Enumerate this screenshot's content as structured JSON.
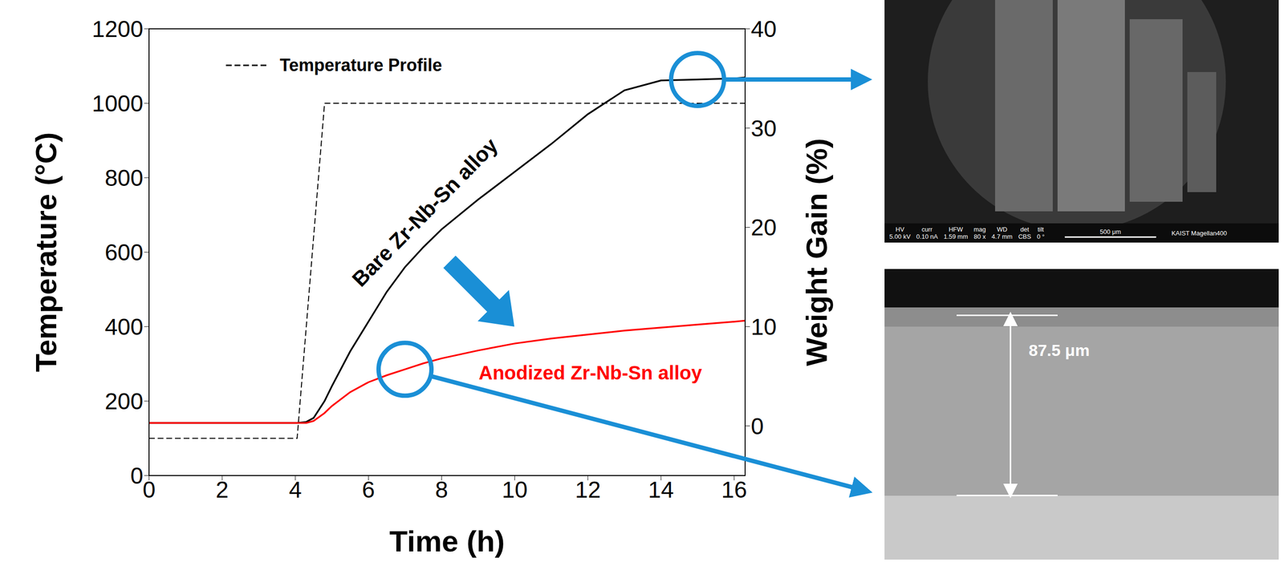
{
  "chart_data": {
    "type": "line",
    "x": [
      0,
      1,
      2,
      3,
      4,
      4.05,
      4.3,
      4.5,
      4.8,
      5,
      5.5,
      6,
      6.5,
      7,
      7.5,
      8,
      9,
      10,
      11,
      12,
      13,
      14,
      15,
      16,
      16.3
    ],
    "xlim": [
      0,
      16.3
    ],
    "xticks": [
      0,
      2,
      4,
      6,
      8,
      10,
      12,
      14,
      16
    ],
    "ylim": [
      0,
      1200
    ],
    "yticks": [
      0,
      200,
      400,
      600,
      800,
      1000,
      1200
    ],
    "y2lim": [
      -5,
      40
    ],
    "y2ticks": [
      0,
      10,
      20,
      30,
      40
    ],
    "x_label": "Time (h)",
    "y_label": "Temperature (°C)",
    "y2_label": "Weight Gain (%)",
    "legend": "upper left",
    "grid": false,
    "series": [
      {
        "name": "Temperature Profile",
        "color": "#000000",
        "line_style": "dashed",
        "values": [
          100,
          100,
          100,
          100,
          100,
          100,
          400,
          640,
          1000,
          1000,
          1000,
          1000,
          1000,
          1000,
          1000,
          1000,
          1000,
          1000,
          1000,
          1000,
          1000,
          1000,
          1000,
          1000,
          1000
        ]
      },
      {
        "name": "Bare Zr-Nb-Sn alloy",
        "color": "#000000",
        "axis": "y2",
        "line_style": "solid",
        "values": [
          0.3,
          0.3,
          0.3,
          0.3,
          0.3,
          0.3,
          0.4,
          0.8,
          2.5,
          4.0,
          7.5,
          10.5,
          13.5,
          16.0,
          18.0,
          19.8,
          22.8,
          25.6,
          28.4,
          31.4,
          33.8,
          34.8,
          34.9,
          35.0,
          35.1
        ]
      },
      {
        "name": "Anodized Zr-Nb-Sn alloy",
        "color": "#ff0000",
        "axis": "y2",
        "line_style": "solid",
        "values": [
          0.3,
          0.3,
          0.3,
          0.3,
          0.3,
          0.3,
          0.3,
          0.5,
          1.3,
          2.0,
          3.4,
          4.4,
          5.1,
          5.7,
          6.3,
          6.8,
          7.6,
          8.3,
          8.8,
          9.2,
          9.6,
          9.9,
          10.2,
          10.5,
          10.6
        ]
      }
    ]
  },
  "images": [
    {
      "metadata": [
        {
          "label": "HV",
          "value": "5.00 kV"
        },
        {
          "label": "curr",
          "value": "0.10 nA"
        },
        {
          "label": "HFW",
          "value": "1.59 mm"
        },
        {
          "label": "mag",
          "value": "80 x"
        },
        {
          "label": "WD",
          "value": "4.7 mm"
        },
        {
          "label": "det",
          "value": "CBS"
        },
        {
          "label": "tilt",
          "value": "0 °"
        }
      ],
      "scale_bar": "500 μm",
      "instrument": "KAIST Magellan400"
    },
    {
      "thickness": "87.5 μm"
    }
  ]
}
